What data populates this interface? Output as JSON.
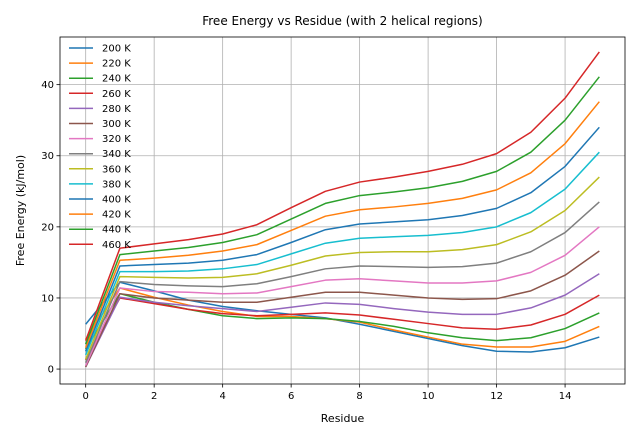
{
  "chart_data": {
    "type": "line",
    "title": "Free Energy vs Residue (with 2 helical regions)",
    "xlabel": "Residue",
    "ylabel": "Free Energy (kJ/mol)",
    "xlim": [
      -0.75,
      15.75
    ],
    "ylim": [
      -2.1,
      46.7
    ],
    "xticks": [
      0,
      2,
      4,
      6,
      8,
      10,
      12,
      14
    ],
    "yticks": [
      0,
      10,
      20,
      30,
      40
    ],
    "grid": true,
    "legend_position": "top-left",
    "x": [
      0,
      1,
      2,
      3,
      4,
      5,
      6,
      7,
      8,
      9,
      10,
      11,
      12,
      13,
      14,
      15
    ],
    "series": [
      {
        "name": "200 K",
        "color": "#1f77b4",
        "values": [
          6.3,
          12.2,
          11.0,
          9.7,
          8.8,
          8.2,
          7.7,
          7.2,
          6.3,
          5.3,
          4.3,
          3.3,
          2.5,
          2.4,
          3.0,
          4.5
        ]
      },
      {
        "name": "220 K",
        "color": "#ff7f0e",
        "values": [
          4.2,
          11.4,
          10.1,
          9.0,
          8.1,
          7.4,
          7.4,
          7.1,
          6.6,
          5.5,
          4.5,
          3.5,
          3.1,
          3.1,
          3.9,
          6.0
        ]
      },
      {
        "name": "240 K",
        "color": "#2ca02c",
        "values": [
          2.8,
          10.6,
          9.4,
          8.4,
          7.5,
          7.1,
          7.2,
          7.1,
          6.7,
          6.0,
          5.1,
          4.4,
          4.0,
          4.4,
          5.7,
          7.9
        ]
      },
      {
        "name": "260 K",
        "color": "#d62728",
        "values": [
          1.3,
          10.0,
          9.2,
          8.4,
          7.8,
          7.5,
          7.7,
          7.9,
          7.6,
          7.0,
          6.4,
          5.8,
          5.6,
          6.2,
          7.7,
          10.4
        ]
      },
      {
        "name": "280 K",
        "color": "#9467bd",
        "values": [
          0.3,
          10.1,
          9.4,
          8.9,
          8.5,
          8.1,
          8.7,
          9.3,
          9.1,
          8.5,
          8.0,
          7.7,
          7.7,
          8.6,
          10.4,
          13.4
        ]
      },
      {
        "name": "300 K",
        "color": "#8c564b",
        "values": [
          0.3,
          10.6,
          10.0,
          9.7,
          9.4,
          9.4,
          10.1,
          10.8,
          10.8,
          10.4,
          10.0,
          9.8,
          9.9,
          11.0,
          13.2,
          16.6
        ]
      },
      {
        "name": "320 K",
        "color": "#e377c2",
        "values": [
          0.5,
          11.4,
          10.9,
          10.8,
          10.6,
          10.7,
          11.6,
          12.5,
          12.7,
          12.4,
          12.1,
          12.1,
          12.4,
          13.6,
          16.0,
          20.0
        ]
      },
      {
        "name": "340 K",
        "color": "#7f7f7f",
        "values": [
          0.9,
          12.3,
          11.9,
          11.7,
          11.6,
          12.0,
          13.0,
          14.1,
          14.5,
          14.4,
          14.3,
          14.4,
          14.9,
          16.5,
          19.2,
          23.5
        ]
      },
      {
        "name": "360 K",
        "color": "#bcbd22",
        "values": [
          1.4,
          13.0,
          12.9,
          12.8,
          12.9,
          13.4,
          14.6,
          15.9,
          16.4,
          16.5,
          16.5,
          16.8,
          17.5,
          19.3,
          22.3,
          27.0
        ]
      },
      {
        "name": "380 K",
        "color": "#17becf",
        "values": [
          2.0,
          13.7,
          13.7,
          13.8,
          14.1,
          14.7,
          16.2,
          17.7,
          18.4,
          18.6,
          18.8,
          19.2,
          20.0,
          22.0,
          25.3,
          30.5
        ]
      },
      {
        "name": "400 K",
        "color": "#1f77b4",
        "values": [
          2.5,
          14.5,
          14.7,
          14.9,
          15.3,
          16.1,
          17.8,
          19.6,
          20.4,
          20.7,
          21.0,
          21.6,
          22.6,
          24.8,
          28.5,
          34.0
        ]
      },
      {
        "name": "420 K",
        "color": "#ff7f0e",
        "values": [
          3.0,
          15.3,
          15.6,
          16.0,
          16.6,
          17.5,
          19.5,
          21.5,
          22.4,
          22.8,
          23.3,
          24.0,
          25.2,
          27.6,
          31.7,
          37.6
        ]
      },
      {
        "name": "440 K",
        "color": "#2ca02c",
        "values": [
          3.5,
          16.1,
          16.6,
          17.1,
          17.8,
          18.9,
          21.1,
          23.3,
          24.4,
          24.9,
          25.5,
          26.4,
          27.8,
          30.5,
          35.0,
          41.1
        ]
      },
      {
        "name": "460 K",
        "color": "#d62728",
        "values": [
          4.0,
          17.0,
          17.6,
          18.2,
          19.0,
          20.3,
          22.7,
          25.0,
          26.3,
          27.0,
          27.8,
          28.8,
          30.3,
          33.3,
          38.1,
          44.6
        ]
      }
    ]
  }
}
